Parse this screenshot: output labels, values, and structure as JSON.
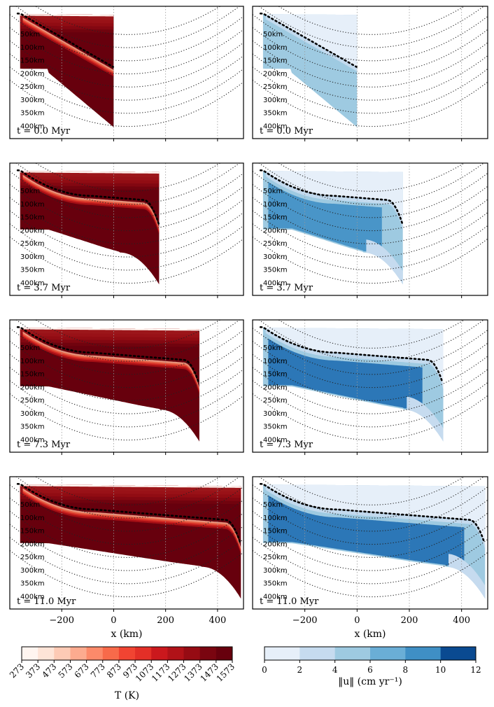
{
  "chart_data": {
    "type": "contour-panels",
    "x_axis": {
      "label": "x (km)",
      "ticks": [
        -200,
        0,
        200,
        400
      ],
      "xlim": [
        -400,
        500
      ]
    },
    "depth_labels": [
      "50km",
      "100km",
      "150km",
      "200km",
      "250km",
      "300km",
      "350km",
      "400km"
    ],
    "times": [
      {
        "label": "t = 0.0 Myr",
        "right_edge_km": 0
      },
      {
        "label": "t = 3.7 Myr",
        "right_edge_km": 175
      },
      {
        "label": "t = 7.3 Myr",
        "right_edge_km": 330
      },
      {
        "label": "t = 11.0 Myr",
        "right_edge_km": 490
      }
    ],
    "temperature_colorbar": {
      "label": "T (K)",
      "ticks": [
        "273",
        "373",
        "473",
        "573",
        "673",
        "773",
        "873",
        "973",
        "1073",
        "1173",
        "1273",
        "1373",
        "1473",
        "1573"
      ],
      "colors": [
        "#fff5f0",
        "#fee4d7",
        "#fdcab5",
        "#fcab8f",
        "#fc8a6a",
        "#f86a4a",
        "#f14432",
        "#e32f27",
        "#cb181d",
        "#b11218",
        "#960b13",
        "#7a0510",
        "#67000d"
      ]
    },
    "velocity_colorbar": {
      "label": "‖u‖ (cm yr⁻¹)",
      "ticks": [
        "0",
        "2",
        "4",
        "6",
        "8",
        "10",
        "12"
      ],
      "colors": [
        "#e6eff9",
        "#c6dbef",
        "#9ecae1",
        "#6aaed6",
        "#3f8fc5",
        "#1f6eb3",
        "#0a4a91"
      ]
    }
  }
}
